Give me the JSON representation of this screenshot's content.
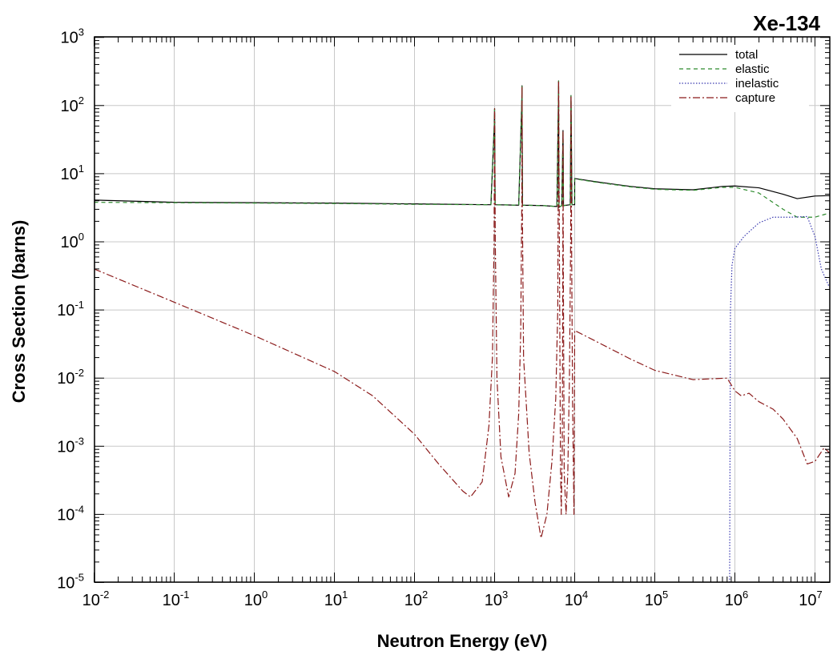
{
  "chart_data": {
    "type": "line",
    "title": "Xe-134",
    "xlabel": "Neutron Energy (eV)",
    "ylabel": "Cross Section (barns)",
    "xscale": "log",
    "yscale": "log",
    "xlim": [
      0.01,
      20000000
    ],
    "ylim": [
      1e-05,
      1000
    ],
    "grid": true,
    "legend_position": "top-right",
    "x_ticks": [
      {
        "base": "10",
        "exp": "-2"
      },
      {
        "base": "10",
        "exp": "-1"
      },
      {
        "base": "10",
        "exp": "0"
      },
      {
        "base": "10",
        "exp": "1"
      },
      {
        "base": "10",
        "exp": "2"
      },
      {
        "base": "10",
        "exp": "3"
      },
      {
        "base": "10",
        "exp": "4"
      },
      {
        "base": "10",
        "exp": "5"
      },
      {
        "base": "10",
        "exp": "6"
      },
      {
        "base": "10",
        "exp": "7"
      }
    ],
    "y_ticks": [
      {
        "base": "10",
        "exp": "-5"
      },
      {
        "base": "10",
        "exp": "-4"
      },
      {
        "base": "10",
        "exp": "-3"
      },
      {
        "base": "10",
        "exp": "-2"
      },
      {
        "base": "10",
        "exp": "-1"
      },
      {
        "base": "10",
        "exp": "0"
      },
      {
        "base": "10",
        "exp": "1"
      },
      {
        "base": "10",
        "exp": "2"
      },
      {
        "base": "10",
        "exp": "3"
      }
    ],
    "series": [
      {
        "name": "total",
        "color": "#000000",
        "dash": "",
        "points": [
          [
            0.01,
            4.1
          ],
          [
            0.1,
            3.8
          ],
          [
            1,
            3.75
          ],
          [
            10,
            3.7
          ],
          [
            100,
            3.6
          ],
          [
            900,
            3.5
          ],
          [
            990,
            50
          ],
          [
            1000,
            90
          ],
          [
            1015,
            3.5
          ],
          [
            2000,
            3.45
          ],
          [
            2180,
            100
          ],
          [
            2200,
            195
          ],
          [
            2230,
            3.45
          ],
          [
            4000,
            3.4
          ],
          [
            6000,
            3.3
          ],
          [
            6250,
            100
          ],
          [
            6300,
            230
          ],
          [
            6350,
            3.2
          ],
          [
            6900,
            3.4
          ],
          [
            7150,
            43
          ],
          [
            7250,
            3.4
          ],
          [
            8800,
            3.5
          ],
          [
            9000,
            140
          ],
          [
            9250,
            3.5
          ],
          [
            9990,
            3.5
          ],
          [
            10000,
            8.5
          ],
          [
            20000,
            7.5
          ],
          [
            50000,
            6.5
          ],
          [
            100000,
            6.0
          ],
          [
            300000,
            5.8
          ],
          [
            700000,
            6.5
          ],
          [
            1000000,
            6.6
          ],
          [
            2000000,
            6.2
          ],
          [
            4000000,
            5.0
          ],
          [
            6000000,
            4.3
          ],
          [
            10000000,
            4.7
          ],
          [
            20000000,
            4.8
          ]
        ]
      },
      {
        "name": "elastic",
        "color": "#2e8b2e",
        "dash": "5,4",
        "points": [
          [
            0.01,
            3.8
          ],
          [
            0.1,
            3.75
          ],
          [
            1,
            3.7
          ],
          [
            10,
            3.65
          ],
          [
            100,
            3.55
          ],
          [
            900,
            3.5
          ],
          [
            990,
            50
          ],
          [
            1000,
            90
          ],
          [
            1015,
            3.5
          ],
          [
            2000,
            3.45
          ],
          [
            2180,
            100
          ],
          [
            2200,
            195
          ],
          [
            2230,
            3.45
          ],
          [
            4000,
            3.4
          ],
          [
            6000,
            3.3
          ],
          [
            6250,
            100
          ],
          [
            6300,
            230
          ],
          [
            6350,
            3.2
          ],
          [
            6900,
            3.4
          ],
          [
            7150,
            43
          ],
          [
            7250,
            3.4
          ],
          [
            8800,
            3.5
          ],
          [
            9000,
            140
          ],
          [
            9250,
            3.5
          ],
          [
            9990,
            3.5
          ],
          [
            10000,
            8.4
          ],
          [
            20000,
            7.4
          ],
          [
            50000,
            6.4
          ],
          [
            100000,
            5.9
          ],
          [
            300000,
            5.7
          ],
          [
            700000,
            6.3
          ],
          [
            1000000,
            6.3
          ],
          [
            2000000,
            5.2
          ],
          [
            4000000,
            3.0
          ],
          [
            6000000,
            2.3
          ],
          [
            10000000,
            2.3
          ],
          [
            20000000,
            2.9
          ]
        ]
      },
      {
        "name": "inelastic",
        "color": "#3a3ab0",
        "dash": "1.5,2",
        "points": [
          [
            860000,
            1e-05
          ],
          [
            880000,
            0.1
          ],
          [
            920000,
            0.45
          ],
          [
            1000000,
            0.8
          ],
          [
            1300000,
            1.2
          ],
          [
            2000000,
            1.9
          ],
          [
            3000000,
            2.3
          ],
          [
            5000000,
            2.3
          ],
          [
            8000000,
            2.35
          ],
          [
            10000000,
            1.2
          ],
          [
            12000000,
            0.4
          ],
          [
            15000000,
            0.22
          ],
          [
            20000000,
            0.2
          ]
        ]
      },
      {
        "name": "capture",
        "color": "#8b1a1a",
        "dash": "9,3,2,3",
        "points": [
          [
            0.01,
            0.4
          ],
          [
            0.1,
            0.13
          ],
          [
            1,
            0.042
          ],
          [
            10,
            0.0125
          ],
          [
            30,
            0.0055
          ],
          [
            100,
            0.0015
          ],
          [
            200,
            0.00055
          ],
          [
            400,
            0.00022
          ],
          [
            500,
            0.00018
          ],
          [
            700,
            0.0003
          ],
          [
            850,
            0.002
          ],
          [
            940,
            0.02
          ],
          [
            985,
            1
          ],
          [
            1000,
            90
          ],
          [
            1020,
            1
          ],
          [
            1070,
            0.01
          ],
          [
            1200,
            0.0007
          ],
          [
            1500,
            0.00018
          ],
          [
            1800,
            0.0004
          ],
          [
            2000,
            0.003
          ],
          [
            2120,
            0.05
          ],
          [
            2190,
            5
          ],
          [
            2200,
            195
          ],
          [
            2215,
            5
          ],
          [
            2300,
            0.02
          ],
          [
            2700,
            0.0008
          ],
          [
            3200,
            0.00015
          ],
          [
            3800,
            4.5e-05
          ],
          [
            4500,
            0.0001
          ],
          [
            5200,
            0.0006
          ],
          [
            5800,
            0.005
          ],
          [
            6150,
            0.1
          ],
          [
            6300,
            230
          ],
          [
            6500,
            0.1
          ],
          [
            6650,
            0.0005
          ],
          [
            6800,
            0.0001
          ],
          [
            7000,
            0.001
          ],
          [
            7100,
            0.3
          ],
          [
            7150,
            43
          ],
          [
            7220,
            0.3
          ],
          [
            7400,
            0.0004
          ],
          [
            7800,
            0.0001
          ],
          [
            8200,
            0.0004
          ],
          [
            8600,
            0.01
          ],
          [
            8900,
            1
          ],
          [
            9000,
            140
          ],
          [
            9150,
            1
          ],
          [
            9400,
            0.005
          ],
          [
            9800,
            0.0001
          ],
          [
            10000,
            0.05
          ],
          [
            20000,
            0.033
          ],
          [
            50000,
            0.019
          ],
          [
            100000,
            0.013
          ],
          [
            300000,
            0.0095
          ],
          [
            800000,
            0.01
          ],
          [
            1000000,
            0.0065
          ],
          [
            1200000,
            0.0055
          ],
          [
            1500000,
            0.006
          ],
          [
            2000000,
            0.0045
          ],
          [
            3000000,
            0.0035
          ],
          [
            4000000,
            0.0025
          ],
          [
            6000000,
            0.0013
          ],
          [
            8000000,
            0.00055
          ],
          [
            10000000,
            0.0006
          ],
          [
            13000000,
            0.00095
          ],
          [
            16000000,
            0.00075
          ],
          [
            20000000,
            0.0006
          ]
        ]
      }
    ]
  }
}
